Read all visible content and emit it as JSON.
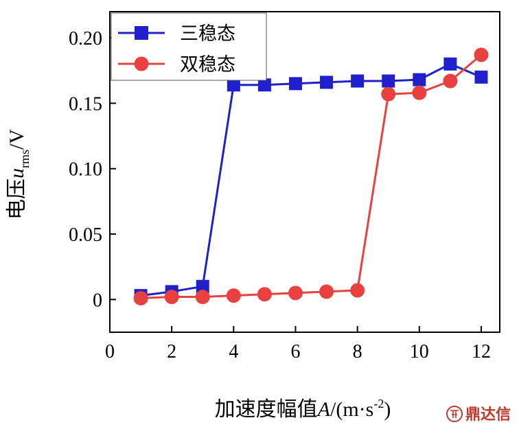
{
  "chart_data": {
    "type": "line",
    "xlabel": "加速度幅值A/(m·s-2)",
    "xlabel_parts": {
      "prefix": "加速度幅值",
      "var": "A",
      "mid": "/(m·s",
      "sup": "-2",
      "suffix": ")"
    },
    "ylabel": "电压urms/V",
    "ylabel_parts": {
      "prefix": "电压",
      "var": "u",
      "sub": "rms",
      "suffix": "/V"
    },
    "xlim": [
      0,
      12.6
    ],
    "ylim": [
      -0.025,
      0.22
    ],
    "xticks": [
      0,
      2,
      4,
      6,
      8,
      10,
      12
    ],
    "xtick_labels": [
      "0",
      "2",
      "4",
      "6",
      "8",
      "10",
      "12"
    ],
    "yticks": [
      0,
      0.05,
      0.1,
      0.15,
      0.2
    ],
    "ytick_labels": [
      "0",
      "0.05",
      "0.10",
      "0.15",
      "0.20"
    ],
    "grid": false,
    "legend_position": "top-left",
    "series": [
      {
        "name": "三稳态",
        "color": "#1f1fcc",
        "marker": "square",
        "x": [
          1,
          2,
          3,
          4,
          5,
          6,
          7,
          8,
          9,
          10,
          11,
          12
        ],
        "y": [
          0.003,
          0.006,
          0.01,
          0.164,
          0.164,
          0.165,
          0.166,
          0.167,
          0.167,
          0.168,
          0.18,
          0.17
        ]
      },
      {
        "name": "双稳态",
        "color": "#e8413f",
        "marker": "circle",
        "x": [
          1,
          2,
          3,
          4,
          5,
          6,
          7,
          8,
          9,
          10,
          11,
          12
        ],
        "y": [
          0.001,
          0.002,
          0.002,
          0.003,
          0.004,
          0.005,
          0.006,
          0.007,
          0.157,
          0.158,
          0.167,
          0.187
        ]
      }
    ]
  },
  "watermark": {
    "text": "鼎达信",
    "icon": "logo-icon"
  }
}
